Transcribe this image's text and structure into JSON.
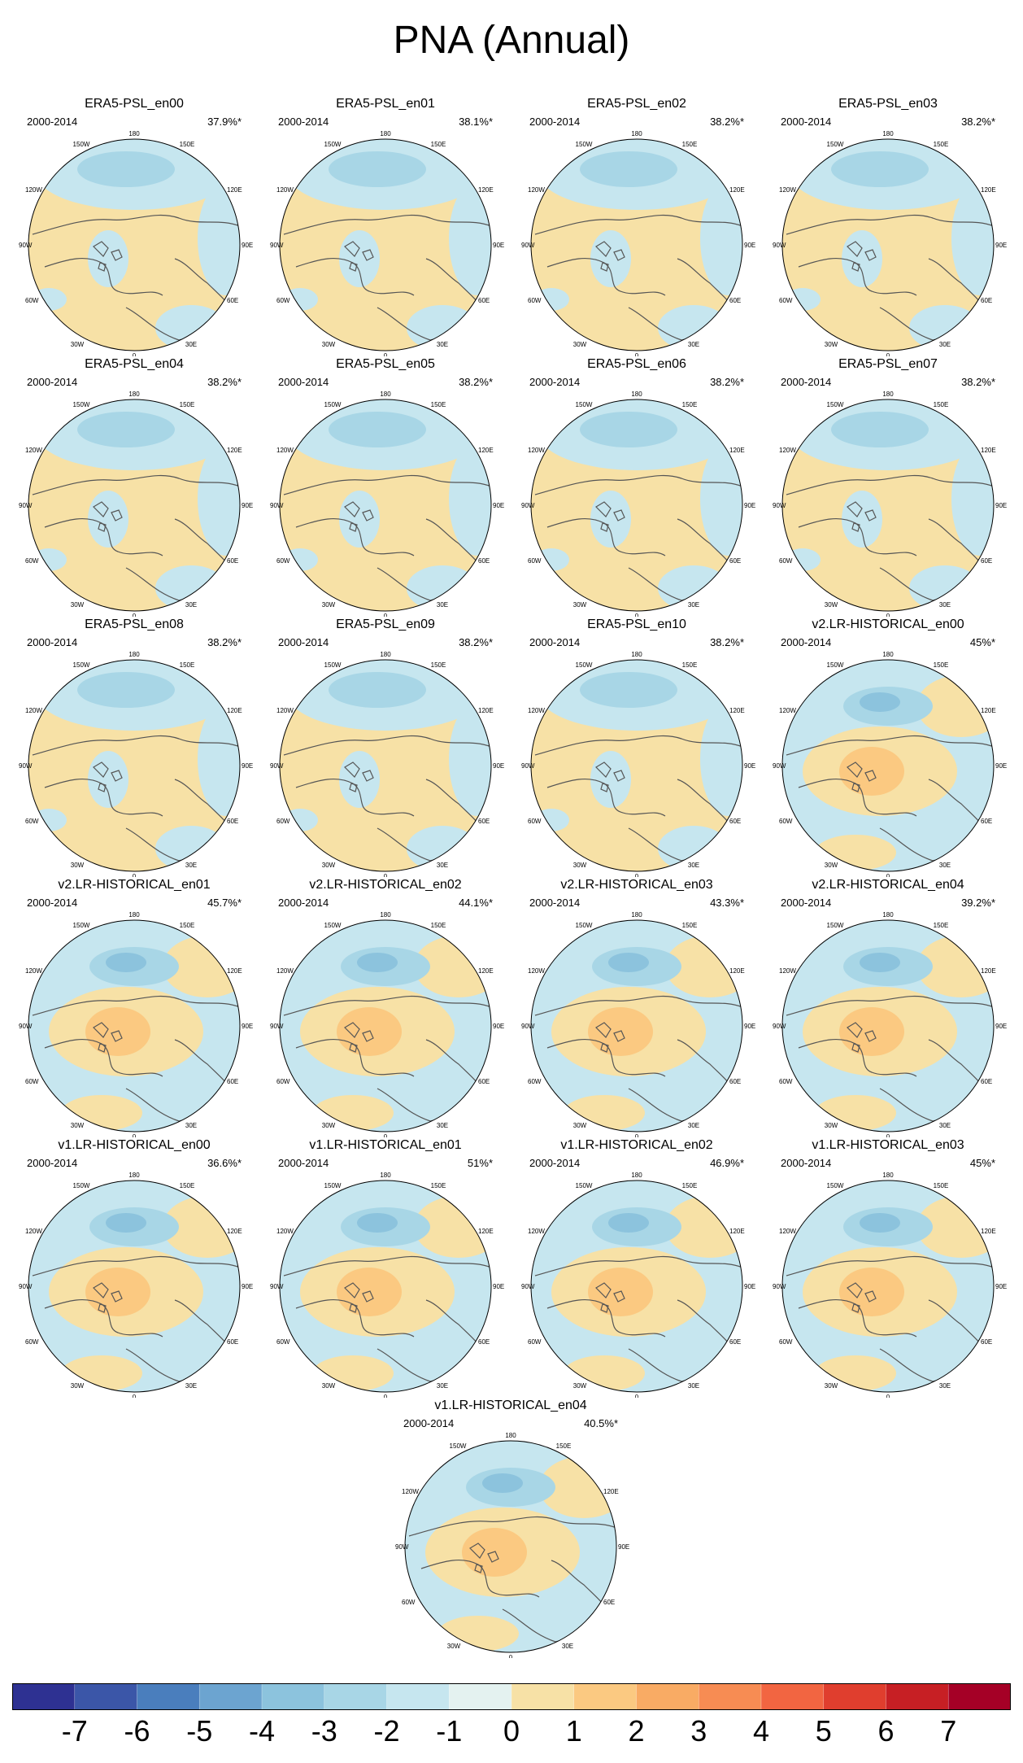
{
  "title": "PNA (Annual)",
  "colors": {
    "neg1": "#c6e6ef",
    "neg2": "#a8d6e6",
    "neg3": "#8cc3dd",
    "pos0": "#f7e1a6",
    "pos1": "#fbc981",
    "pos2": "#f9ab64",
    "land": "#555555"
  },
  "grid_labels": {
    "lon_180": "180",
    "lon_150w": "150W",
    "lon_150e": "150E",
    "lon_120w": "120W",
    "lon_120e": "120E",
    "lon_90w": "90W",
    "lon_90e": "90E",
    "lon_60w": "60W",
    "lon_60e": "60E",
    "lon_30w": "30W",
    "lon_30e": "30E",
    "lon_0": "0"
  },
  "panels": [
    {
      "name": "ERA5-PSL_en00",
      "period": "2000-2014",
      "percent": "37.9%*",
      "pattern": "era5"
    },
    {
      "name": "ERA5-PSL_en01",
      "period": "2000-2014",
      "percent": "38.1%*",
      "pattern": "era5"
    },
    {
      "name": "ERA5-PSL_en02",
      "period": "2000-2014",
      "percent": "38.2%*",
      "pattern": "era5"
    },
    {
      "name": "ERA5-PSL_en03",
      "period": "2000-2014",
      "percent": "38.2%*",
      "pattern": "era5"
    },
    {
      "name": "ERA5-PSL_en04",
      "period": "2000-2014",
      "percent": "38.2%*",
      "pattern": "era5"
    },
    {
      "name": "ERA5-PSL_en05",
      "period": "2000-2014",
      "percent": "38.2%*",
      "pattern": "era5"
    },
    {
      "name": "ERA5-PSL_en06",
      "period": "2000-2014",
      "percent": "38.2%*",
      "pattern": "era5"
    },
    {
      "name": "ERA5-PSL_en07",
      "period": "2000-2014",
      "percent": "38.2%*",
      "pattern": "era5"
    },
    {
      "name": "ERA5-PSL_en08",
      "period": "2000-2014",
      "percent": "38.2%*",
      "pattern": "era5"
    },
    {
      "name": "ERA5-PSL_en09",
      "period": "2000-2014",
      "percent": "38.2%*",
      "pattern": "era5"
    },
    {
      "name": "ERA5-PSL_en10",
      "period": "2000-2014",
      "percent": "38.2%*",
      "pattern": "era5"
    },
    {
      "name": "v2.LR-HISTORICAL_en00",
      "period": "2000-2014",
      "percent": "45%*",
      "pattern": "model"
    },
    {
      "name": "v2.LR-HISTORICAL_en01",
      "period": "2000-2014",
      "percent": "45.7%*",
      "pattern": "model"
    },
    {
      "name": "v2.LR-HISTORICAL_en02",
      "period": "2000-2014",
      "percent": "44.1%*",
      "pattern": "model"
    },
    {
      "name": "v2.LR-HISTORICAL_en03",
      "period": "2000-2014",
      "percent": "43.3%*",
      "pattern": "model"
    },
    {
      "name": "v2.LR-HISTORICAL_en04",
      "period": "2000-2014",
      "percent": "39.2%*",
      "pattern": "model"
    },
    {
      "name": "v1.LR-HISTORICAL_en00",
      "period": "2000-2014",
      "percent": "36.6%*",
      "pattern": "model"
    },
    {
      "name": "v1.LR-HISTORICAL_en01",
      "period": "2000-2014",
      "percent": "51%*",
      "pattern": "model"
    },
    {
      "name": "v1.LR-HISTORICAL_en02",
      "period": "2000-2014",
      "percent": "46.9%*",
      "pattern": "model"
    },
    {
      "name": "v1.LR-HISTORICAL_en03",
      "period": "2000-2014",
      "percent": "45%*",
      "pattern": "model"
    },
    {
      "name": "v1.LR-HISTORICAL_en04",
      "period": "2000-2014",
      "percent": "40.5%*",
      "pattern": "model"
    }
  ],
  "colorbar": {
    "colors": [
      "#2e3192",
      "#3b56a8",
      "#4a7ebd",
      "#6ca4d0",
      "#8cc3dd",
      "#a8d6e6",
      "#c6e6ef",
      "#e4f2f0",
      "#f7e1a6",
      "#fbc981",
      "#f9ab64",
      "#f78c53",
      "#f26541",
      "#e03e2e",
      "#c71f24",
      "#a50026"
    ],
    "tick_labels": [
      "-7",
      "-6",
      "-5",
      "-4",
      "-3",
      "-2",
      "-1",
      "0",
      "1",
      "2",
      "3",
      "4",
      "5",
      "6",
      "7"
    ]
  }
}
